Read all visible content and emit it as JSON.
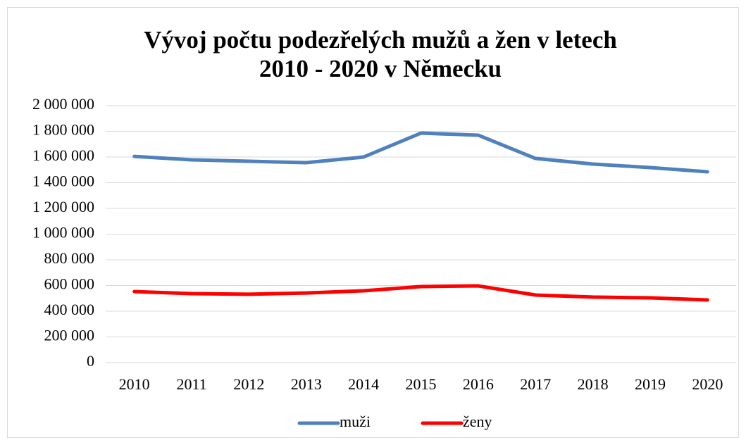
{
  "chart_data": {
    "type": "line",
    "title": [
      "Vývoj počtu podezřelých mužů a žen v letech",
      "2010 - 2020 v Německu"
    ],
    "categories": [
      "2010",
      "2011",
      "2012",
      "2013",
      "2014",
      "2015",
      "2016",
      "2017",
      "2018",
      "2019",
      "2020"
    ],
    "series": [
      {
        "name": "muži",
        "color": "#4f81bd",
        "values": [
          1605000,
          1578000,
          1567000,
          1556000,
          1600000,
          1786000,
          1770000,
          1589000,
          1545000,
          1518000,
          1485000
        ]
      },
      {
        "name": "ženy",
        "color": "#ff0000",
        "values": [
          553000,
          537000,
          532000,
          542000,
          559000,
          592000,
          597000,
          526000,
          510000,
          504000,
          488000
        ]
      }
    ],
    "ylim": [
      0,
      2000000
    ],
    "yticks": [
      0,
      {
        "value": 200000,
        "label": "200 000"
      },
      {
        "value": 400000,
        "label": "400 000"
      },
      {
        "value": 600000,
        "label": "600 000"
      },
      {
        "value": 800000,
        "label": "800 000"
      },
      {
        "value": 1000000,
        "label": "1 000 000"
      },
      {
        "value": 1200000,
        "label": "1 200 000"
      },
      {
        "value": 1400000,
        "label": "1 400 000"
      },
      {
        "value": 1600000,
        "label": "1 600 000"
      },
      {
        "value": 1800000,
        "label": "1 800 000"
      },
      {
        "value": 2000000,
        "label": "2 000 000"
      }
    ],
    "grid": true,
    "legend": "bottom"
  }
}
